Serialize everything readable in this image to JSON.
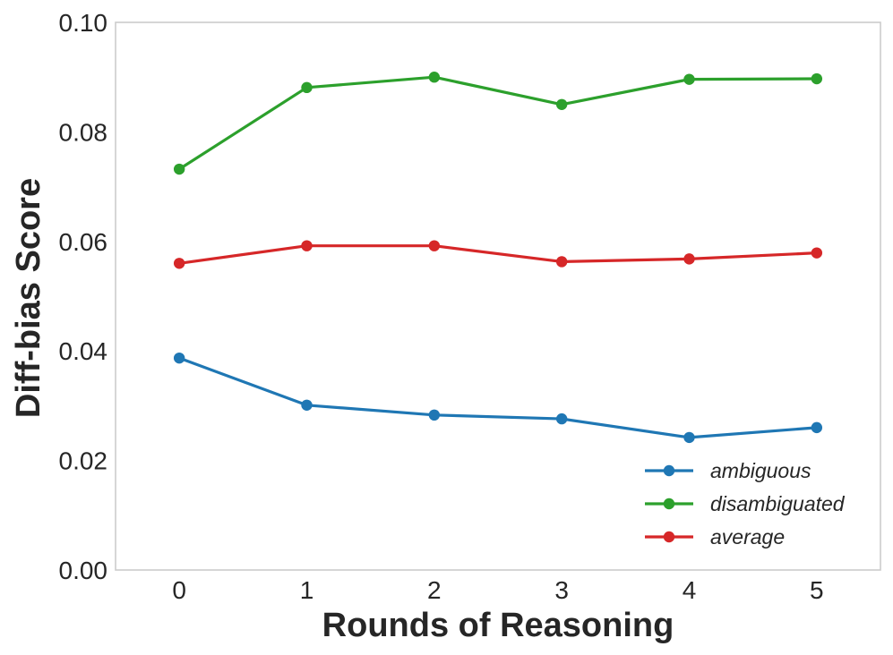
{
  "chart_data": {
    "type": "line",
    "title": "",
    "xlabel": "Rounds of Reasoning",
    "ylabel": "Diff-bias Score",
    "x": [
      0,
      1,
      2,
      3,
      4,
      5
    ],
    "x_tick_labels": [
      "0",
      "1",
      "2",
      "3",
      "4",
      "5"
    ],
    "xlim": [
      -0.5,
      5.5
    ],
    "ylim": [
      0.0,
      0.1
    ],
    "y_ticks": [
      0.0,
      0.02,
      0.04,
      0.06,
      0.08,
      0.1
    ],
    "y_tick_labels": [
      "0.00",
      "0.02",
      "0.04",
      "0.06",
      "0.08",
      "0.10"
    ],
    "grid": false,
    "legend_position": "bottom-right",
    "series": [
      {
        "name": "ambiguous",
        "color": "#1f77b4",
        "values": [
          0.0387,
          0.0301,
          0.0283,
          0.0276,
          0.0242,
          0.026
        ]
      },
      {
        "name": "disambiguated",
        "color": "#2ca02c",
        "values": [
          0.0732,
          0.0881,
          0.09,
          0.085,
          0.0896,
          0.0897
        ]
      },
      {
        "name": "average",
        "color": "#d62728",
        "values": [
          0.056,
          0.0592,
          0.0592,
          0.0563,
          0.0568,
          0.0579
        ]
      }
    ]
  }
}
